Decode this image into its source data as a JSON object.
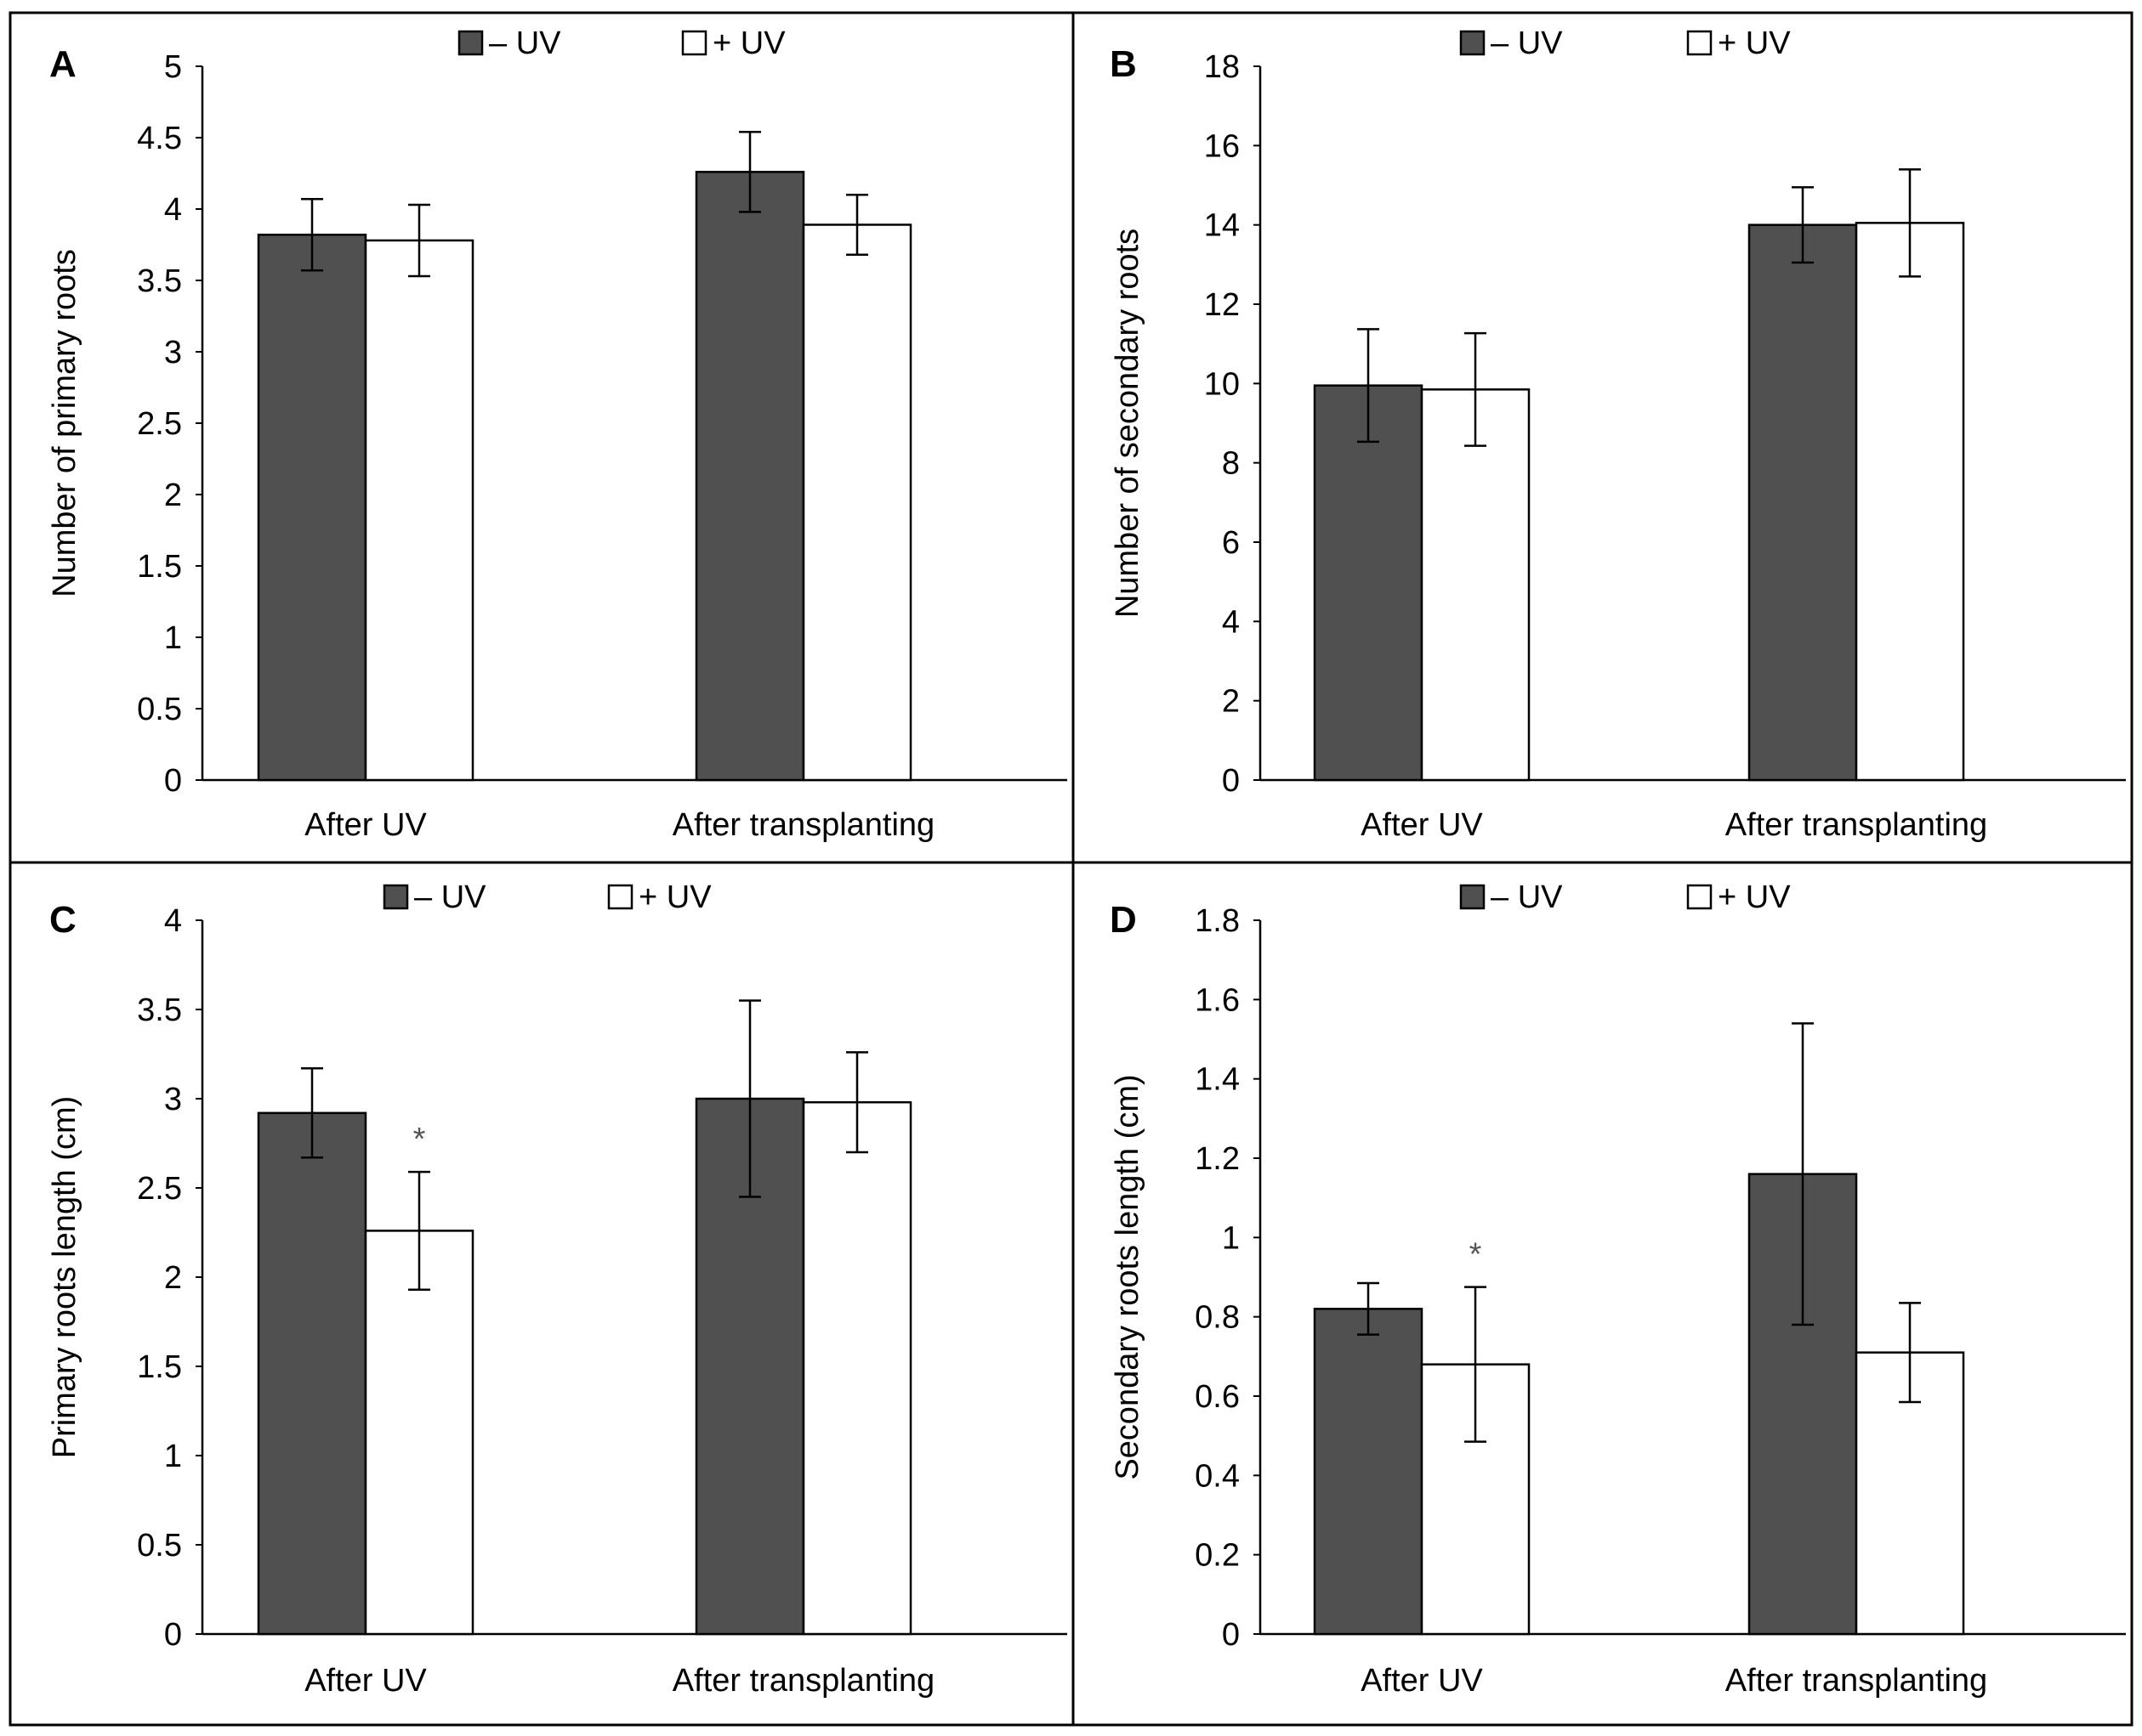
{
  "colors": {
    "minus_uv": "#505050",
    "plus_uv": "#ffffff",
    "axis": "#000000",
    "frame": "#000000"
  },
  "chart_data": [
    {
      "panel": "A",
      "type": "bar",
      "categories": [
        "After UV",
        "After transplanting"
      ],
      "ylabel": "Number of primary roots",
      "ylim": [
        0,
        5
      ],
      "yticks": [
        0,
        0.5,
        1,
        1.5,
        2,
        2.5,
        3,
        3.5,
        4,
        4.5,
        5
      ],
      "ytick_labels": [
        "0",
        "0.5",
        "1",
        "1.5",
        "2",
        "2.5",
        "3",
        "3.5",
        "4",
        "4.5",
        "5"
      ],
      "legend": [
        "– UV",
        "+ UV"
      ],
      "legend_position": "top-center",
      "series": [
        {
          "name": "– UV",
          "values": [
            3.82,
            4.26
          ],
          "errors": [
            0.25,
            0.28
          ]
        },
        {
          "name": "+ UV",
          "values": [
            3.78,
            3.89
          ],
          "errors": [
            0.25,
            0.21
          ]
        }
      ],
      "annotations": []
    },
    {
      "panel": "B",
      "type": "bar",
      "categories": [
        "After UV",
        "After transplanting"
      ],
      "ylabel": "Number of secondary roots",
      "ylim": [
        0,
        18
      ],
      "yticks": [
        0,
        2,
        4,
        6,
        8,
        10,
        12,
        14,
        16,
        18
      ],
      "ytick_labels": [
        "0",
        "2",
        "4",
        "6",
        "8",
        "10",
        "12",
        "14",
        "16",
        "18"
      ],
      "legend": [
        "– UV",
        "+ UV"
      ],
      "legend_position": "top-center",
      "series": [
        {
          "name": "– UV",
          "values": [
            9.95,
            14.0
          ],
          "errors": [
            1.42,
            0.95
          ]
        },
        {
          "name": "+ UV",
          "values": [
            9.85,
            14.05
          ],
          "errors": [
            1.42,
            1.35
          ]
        }
      ],
      "annotations": []
    },
    {
      "panel": "C",
      "type": "bar",
      "categories": [
        "After UV",
        "After transplanting"
      ],
      "ylabel": "Primary  roots length (cm)",
      "ylim": [
        0,
        4
      ],
      "yticks": [
        0,
        0.5,
        1,
        1.5,
        2,
        2.5,
        3,
        3.5,
        4
      ],
      "ytick_labels": [
        "0",
        "0.5",
        "1",
        "1.5",
        "2",
        "2.5",
        "3",
        "3.5",
        "4"
      ],
      "legend": [
        "– UV",
        "+ UV"
      ],
      "legend_position": "top-center",
      "series": [
        {
          "name": "– UV",
          "values": [
            2.92,
            3.0
          ],
          "errors": [
            0.25,
            0.55
          ]
        },
        {
          "name": "+ UV",
          "values": [
            2.26,
            2.98
          ],
          "errors": [
            0.33,
            0.28
          ]
        }
      ],
      "annotations": [
        {
          "text": "*",
          "category": 0,
          "series": 1
        }
      ]
    },
    {
      "panel": "D",
      "type": "bar",
      "categories": [
        "After UV",
        "After transplanting"
      ],
      "ylabel": "Secondary roots length (cm)",
      "ylim": [
        0,
        1.8
      ],
      "yticks": [
        0,
        0.2,
        0.4,
        0.6,
        0.8,
        1,
        1.2,
        1.4,
        1.6,
        1.8
      ],
      "ytick_labels": [
        "0",
        "0.2",
        "0.4",
        "0.6",
        "0.8",
        "1",
        "1.2",
        "1.4",
        "1.6",
        "1.8"
      ],
      "legend": [
        "– UV",
        "+ UV"
      ],
      "legend_position": "top-center",
      "series": [
        {
          "name": "– UV",
          "values": [
            0.82,
            1.16
          ],
          "errors": [
            0.065,
            0.38
          ]
        },
        {
          "name": "+ UV",
          "values": [
            0.68,
            0.71
          ],
          "errors": [
            0.195,
            0.125
          ]
        }
      ],
      "annotations": [
        {
          "text": "*",
          "category": 0,
          "series": 1
        }
      ]
    }
  ]
}
